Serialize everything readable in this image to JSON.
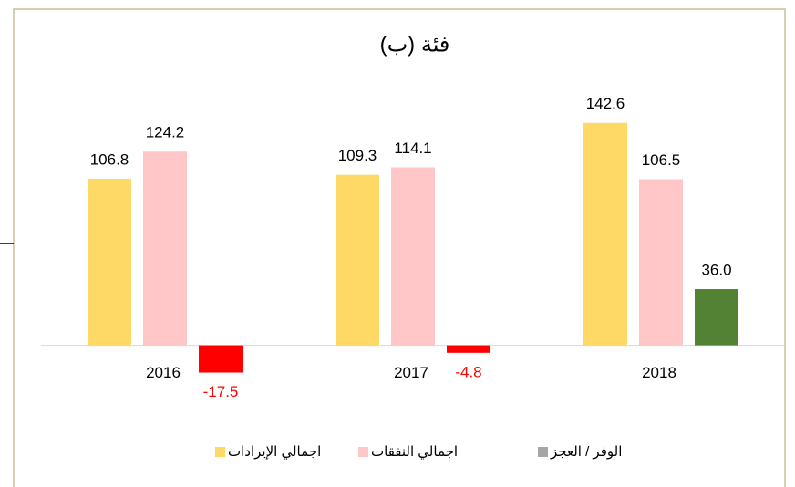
{
  "chart_data": {
    "type": "bar",
    "title": "فئة (ب)",
    "categories": [
      "2016",
      "2017",
      "2018"
    ],
    "series": [
      {
        "name": "اجمالي الإيرادات",
        "color": "#ffd966",
        "values": [
          106.8,
          109.3,
          142.6
        ],
        "value_labels": [
          "106.8",
          "109.3",
          "142.6"
        ]
      },
      {
        "name": "اجمالي النفقات",
        "color": "#ffc7c7",
        "values": [
          124.2,
          114.1,
          106.5
        ],
        "value_labels": [
          "124.2",
          "114.1",
          "106.5"
        ]
      },
      {
        "name": "الوفر / العجز",
        "color": "#a6a6a6",
        "colors": [
          "#ff0000",
          "#ff0000",
          "#548235"
        ],
        "label_colors": [
          "#ff0000",
          "#ff0000",
          "#000000"
        ],
        "values": [
          -17.5,
          -4.8,
          36.0
        ],
        "value_labels": [
          "-17.5",
          "-4.8",
          "36.0"
        ]
      }
    ],
    "ylim": [
      -40,
      160
    ],
    "grid": false
  }
}
